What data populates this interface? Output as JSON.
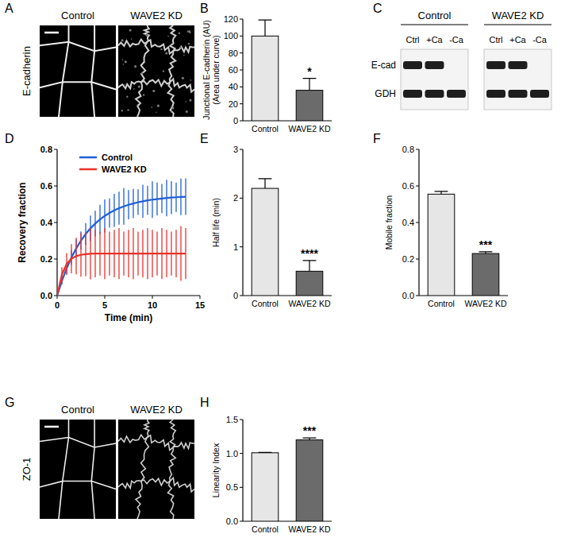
{
  "figure": {
    "images": [
      {
        "panel": "A",
        "ylabel": "E-cadherin",
        "columns": [
          "Control",
          "WAVE2 KD"
        ]
      },
      {
        "panel": "G",
        "ylabel": "ZO-1",
        "columns": [
          "Control",
          "WAVE2 KD"
        ]
      }
    ],
    "blot": {
      "panel": "C",
      "groups": [
        "Control",
        "WAVE2 KD"
      ],
      "lanes": [
        "Ctrl",
        "+Ca",
        "-Ca",
        "Ctrl",
        "+Ca",
        "-Ca"
      ],
      "rows": [
        {
          "label": "E-cad",
          "bands": [
            true,
            true,
            false,
            true,
            true,
            false
          ]
        },
        {
          "label": "GDH",
          "bands": [
            true,
            true,
            true,
            true,
            true,
            true
          ]
        }
      ]
    }
  },
  "chart_data": [
    {
      "panel": "B",
      "type": "bar",
      "ylabel": [
        "Junctional E-cadherin (AU)",
        "(Area under curve)"
      ],
      "categories": [
        "Control",
        "WAVE2 KD"
      ],
      "values": [
        100,
        36
      ],
      "errors": [
        19,
        14
      ],
      "colors": [
        "#e6e6e6",
        "#6b6b6b"
      ],
      "ylim": [
        0,
        120
      ],
      "yticks": [
        0,
        20,
        40,
        60,
        80,
        100,
        120
      ],
      "annotations": [
        {
          "category": "WAVE2 KD",
          "text": "*"
        }
      ]
    },
    {
      "panel": "D",
      "type": "line",
      "xlabel": "Time (min)",
      "ylabel": "Recovery fraction",
      "x": [
        0,
        0.5,
        1,
        1.5,
        2,
        2.5,
        3,
        3.5,
        4,
        4.5,
        5,
        5.5,
        6,
        6.5,
        7,
        7.5,
        8,
        8.5,
        9,
        9.5,
        10,
        10.5,
        11,
        11.5,
        12,
        12.5,
        13,
        13.5
      ],
      "series": [
        {
          "name": "Control",
          "color": "#1f5fd6",
          "values": [
            0,
            0.08,
            0.149,
            0.208,
            0.258,
            0.301,
            0.337,
            0.368,
            0.394,
            0.417,
            0.436,
            0.452,
            0.466,
            0.478,
            0.488,
            0.497,
            0.504,
            0.511,
            0.516,
            0.521,
            0.525,
            0.528,
            0.531,
            0.534,
            0.536,
            0.538,
            0.54,
            0.541
          ],
          "errors": [
            null,
            0.02,
            0.03,
            0.04,
            0.05,
            0.05,
            0.06,
            0.07,
            0.07,
            0.08,
            0.09,
            0.08,
            0.09,
            0.09,
            0.1,
            0.08,
            0.08,
            0.07,
            0.09,
            0.08,
            0.1,
            0.09,
            0.08,
            0.1,
            0.09,
            0.08,
            0.1,
            0.1
          ]
        },
        {
          "name": "WAVE2 KD",
          "color": "#e8322a",
          "values": [
            0,
            0.115,
            0.173,
            0.202,
            0.216,
            0.223,
            0.227,
            0.229,
            0.23,
            0.23,
            0.23,
            0.23,
            0.23,
            0.23,
            0.23,
            0.23,
            0.23,
            0.23,
            0.23,
            0.23,
            0.23,
            0.23,
            0.23,
            0.23,
            0.23,
            0.23,
            0.23,
            0.23
          ],
          "errors": [
            null,
            0.04,
            0.06,
            0.08,
            0.1,
            0.12,
            0.12,
            0.14,
            0.13,
            0.12,
            0.14,
            0.12,
            0.13,
            0.14,
            0.12,
            0.13,
            0.14,
            0.12,
            0.13,
            0.14,
            0.13,
            0.12,
            0.14,
            0.13,
            0.12,
            0.13,
            0.15,
            0.14
          ]
        }
      ],
      "xlim": [
        0,
        15
      ],
      "xticks": [
        0,
        5,
        10,
        15
      ],
      "ylim": [
        0,
        0.8
      ],
      "yticks": [
        {
          "value": 0,
          "label": "0.0"
        },
        0.2,
        0.4,
        0.6,
        0.8
      ],
      "legend": "upper left"
    },
    {
      "panel": "E",
      "type": "bar",
      "ylabel": [
        "Half life (min)"
      ],
      "categories": [
        "Control",
        "WAVE2 KD"
      ],
      "values": [
        2.2,
        0.5
      ],
      "errors": [
        0.2,
        0.22
      ],
      "colors": [
        "#e6e6e6",
        "#6b6b6b"
      ],
      "ylim": [
        0,
        3
      ],
      "yticks": [
        0,
        1,
        2,
        3
      ],
      "annotations": [
        {
          "category": "WAVE2 KD",
          "text": "****"
        }
      ]
    },
    {
      "panel": "F",
      "type": "bar",
      "ylabel": [
        "Mobile fraction"
      ],
      "categories": [
        "Control",
        "WAVE2 KD"
      ],
      "values": [
        0.555,
        0.23
      ],
      "errors": [
        0.015,
        0.01
      ],
      "colors": [
        "#e6e6e6",
        "#6b6b6b"
      ],
      "ylim": [
        0,
        0.8
      ],
      "yticks": [
        {
          "value": 0,
          "label": "0.0"
        },
        0.2,
        0.4,
        0.6,
        0.8
      ],
      "annotations": [
        {
          "category": "WAVE2 KD",
          "text": "***"
        }
      ]
    },
    {
      "panel": "H",
      "type": "bar",
      "ylabel": [
        "Linearity Index"
      ],
      "categories": [
        "Control",
        "WAVE2 KD"
      ],
      "values": [
        1.01,
        1.2
      ],
      "errors": [
        0.005,
        0.03
      ],
      "colors": [
        "#e6e6e6",
        "#6b6b6b"
      ],
      "ylim": [
        0,
        1.5
      ],
      "yticks": [
        {
          "value": 0,
          "label": "0.0"
        },
        {
          "value": 0.5,
          "label": "0.5"
        },
        {
          "value": 1,
          "label": "1.0"
        },
        {
          "value": 1.5,
          "label": "1.5"
        }
      ],
      "annotations": [
        {
          "category": "WAVE2 KD",
          "text": "***"
        }
      ]
    }
  ]
}
